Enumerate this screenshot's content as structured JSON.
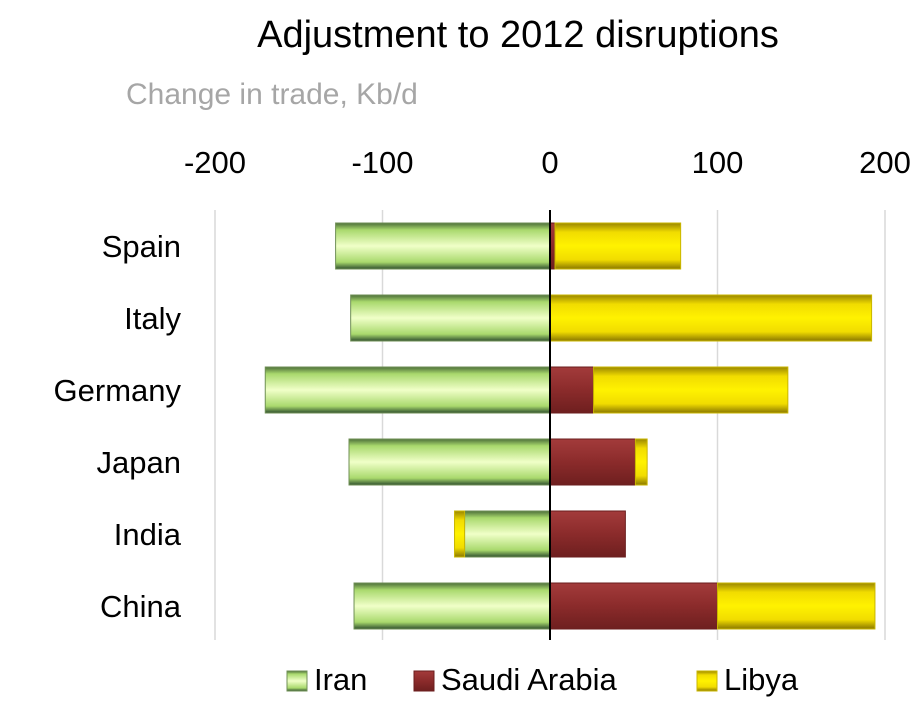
{
  "chart_data": {
    "type": "bar",
    "orientation": "horizontal",
    "stacked": true,
    "title": "Adjustment to 2012 disruptions",
    "subtitle": "Change in trade, Kb/d",
    "categories": [
      "Spain",
      "Italy",
      "Germany",
      "Japan",
      "India",
      "China"
    ],
    "series": [
      {
        "name": "Iran",
        "color": "#a8d96a",
        "values": [
          -128,
          -119,
          -170,
          -120,
          -51,
          -117
        ]
      },
      {
        "name": "Saudi Arabia",
        "color": "#8b2b2b",
        "values": [
          3,
          0,
          26,
          51,
          45,
          100
        ]
      },
      {
        "name": "Libya",
        "color": "#e6d200",
        "values": [
          75,
          192,
          116,
          7,
          -6,
          94
        ]
      }
    ],
    "xlim": [
      -200,
      200
    ],
    "xticks": [
      "-200",
      "-100",
      "0",
      "100",
      "200"
    ],
    "xtick_values": [
      -200,
      -100,
      0,
      100,
      200
    ],
    "grid": true,
    "legend_position": "bottom"
  }
}
